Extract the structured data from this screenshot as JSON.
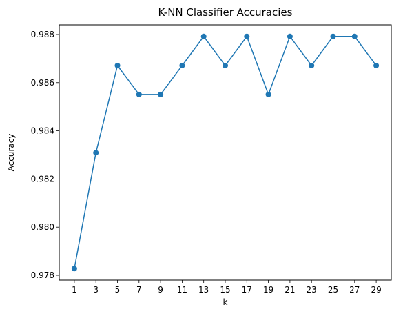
{
  "chart_data": {
    "type": "line",
    "title": "K-NN Classifier Accuracies",
    "xlabel": "k",
    "ylabel": "Accuracy",
    "x": [
      1,
      3,
      5,
      7,
      9,
      11,
      13,
      15,
      17,
      19,
      21,
      23,
      25,
      27,
      29
    ],
    "series": [
      {
        "values": [
          0.97828,
          0.98309,
          0.98671,
          0.98551,
          0.98551,
          0.98671,
          0.98792,
          0.98671,
          0.98792,
          0.98551,
          0.98792,
          0.98671,
          0.98792,
          0.98792,
          0.98671
        ],
        "color": "#1f77b4",
        "marker": "circle"
      }
    ],
    "xticks": [
      "1",
      "3",
      "5",
      "7",
      "9",
      "11",
      "13",
      "15",
      "17",
      "19",
      "21",
      "23",
      "25",
      "27",
      "29"
    ],
    "yticks": [
      "0.978",
      "0.980",
      "0.982",
      "0.984",
      "0.986",
      "0.988"
    ],
    "ytick_values": [
      0.978,
      0.98,
      0.982,
      0.984,
      0.986,
      0.988
    ],
    "xlim": [
      -0.4,
      30.4
    ],
    "ylim": [
      0.9778,
      0.9884
    ],
    "grid": false,
    "legend": "none"
  }
}
